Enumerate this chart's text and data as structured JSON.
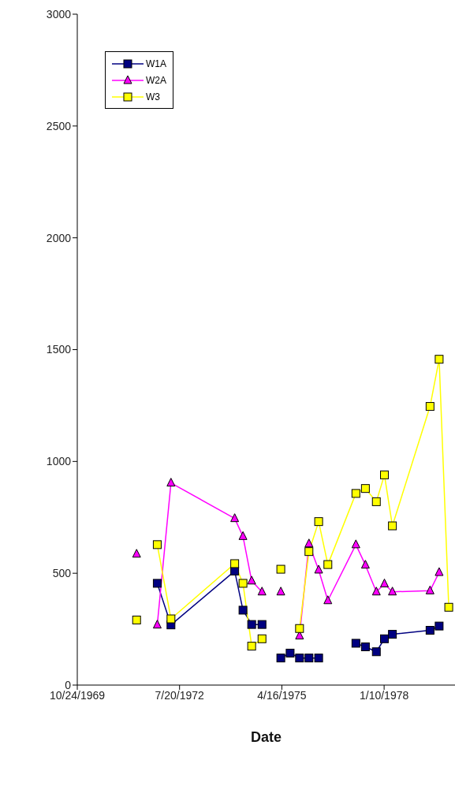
{
  "chart_data": {
    "type": "line",
    "xlabel": "Date",
    "legend": "top left",
    "line_style": "solid",
    "xlim": [
      "1969-10-24",
      "1979-12-04"
    ],
    "xticks": [
      {
        "value": "1969-10-24",
        "label": "10/24/1969"
      },
      {
        "value": "1972-07-20",
        "label": "7/20/1972"
      },
      {
        "value": "1975-04-16",
        "label": "4/16/1975"
      },
      {
        "value": "1978-01-10",
        "label": "1/10/1978"
      }
    ],
    "ylim": [
      0,
      3000
    ],
    "yticks": [
      0,
      500,
      1000,
      1500,
      2000,
      2500,
      3000
    ],
    "series": [
      {
        "name": "W1A",
        "color": "#000080",
        "marker": "square",
        "x": [
          "1971-12-15",
          "1972-04-27",
          "1974-01-10",
          "1974-04-01",
          "1974-06-25",
          "1974-10-04",
          "1975-01-01",
          "1975-04-06",
          "1975-07-06",
          "1975-10-06",
          "1976-01-06",
          "1976-04-10",
          "1976-10-01",
          "1977-04-09",
          "1977-07-11",
          "1977-10-26",
          "1978-01-13",
          "1978-04-01",
          "1979-04-04",
          "1979-07-02"
        ],
        "values": [
          455,
          269,
          510,
          335,
          271,
          271,
          null,
          121,
          143,
          121,
          121,
          121,
          null,
          187,
          171,
          149,
          207,
          227,
          245,
          264
        ]
      },
      {
        "name": "W2A",
        "color": "#ff00ff",
        "marker": "triangle",
        "x": [
          "1971-05-27",
          "1971-09-01",
          "1971-12-15",
          "1972-04-27",
          "1974-01-10",
          "1974-04-01",
          "1974-06-25",
          "1974-10-04",
          "1975-01-01",
          "1975-04-06",
          "1975-07-06",
          "1975-10-06",
          "1976-01-06",
          "1976-04-10",
          "1976-07-09",
          "1977-04-09",
          "1977-07-11",
          "1977-10-26",
          "1978-01-13",
          "1978-04-01",
          "1979-04-04",
          "1979-07-02"
        ],
        "values": [
          586,
          null,
          269,
          904,
          745,
          665,
          466,
          417,
          null,
          417,
          null,
          220,
          632,
          515,
          378,
          628,
          537,
          417,
          453,
          417,
          422,
          504
        ]
      },
      {
        "name": "W3",
        "color": "#ffff00",
        "marker": "square",
        "x": [
          "1971-05-27",
          "1971-09-01",
          "1971-12-15",
          "1972-04-27",
          "1974-01-10",
          "1974-04-01",
          "1974-06-25",
          "1974-10-04",
          "1975-01-01",
          "1975-04-06",
          "1975-07-06",
          "1975-10-06",
          "1976-01-06",
          "1976-04-10",
          "1976-07-09",
          "1977-04-09",
          "1977-07-11",
          "1977-10-26",
          "1978-01-13",
          "1978-04-01",
          "1979-04-04",
          "1979-07-02",
          "1979-10-04"
        ],
        "values": [
          291,
          null,
          628,
          296,
          543,
          455,
          174,
          207,
          null,
          518,
          null,
          253,
          597,
          731,
          539,
          857,
          879,
          820,
          940,
          712,
          1246,
          1457,
          348
        ]
      }
    ]
  }
}
